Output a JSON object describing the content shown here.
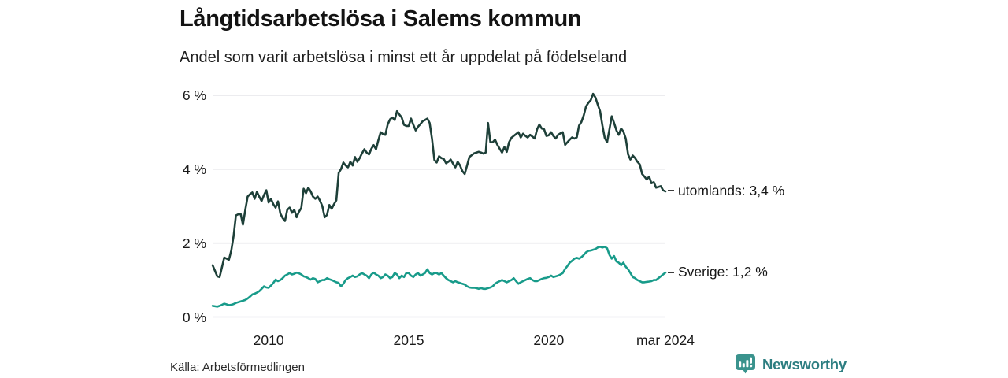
{
  "header": {
    "title": "Långtidsarbetslösa i Salems kommun",
    "subtitle": "Andel som varit arbetslösa i minst ett år uppdelat på födelseland"
  },
  "footer": {
    "source": "Källa: Arbetsförmedlingen",
    "brand": "Newsworthy",
    "brand_icon": "newsworthy-bubble-barchart-icon"
  },
  "colors": {
    "series_foreign": "#1e4039",
    "series_sweden": "#189b8a",
    "grid": "#e6e6ea",
    "text": "#1a1a1a",
    "leader_dash": "#3c3c3c",
    "brand_teal": "#2d7e81",
    "brand_icon_teal": "#3a938d"
  },
  "chart_data": {
    "type": "line",
    "title": "Långtidsarbetslösa i Salems kommun",
    "subtitle": "Andel som varit arbetslösa i minst ett år uppdelat på födelseland",
    "grid": true,
    "legend_position": "end-of-line labels, right of plot",
    "x": {
      "freq": "monthly",
      "start": "2008-01",
      "end": "2024-03",
      "ticks": [
        {
          "label": "2010",
          "month_index": 24
        },
        {
          "label": "2015",
          "month_index": 84
        },
        {
          "label": "2020",
          "month_index": 144
        },
        {
          "label": "mar 2024",
          "month_index": 194
        }
      ]
    },
    "y": {
      "unit": "%",
      "min": 0,
      "max": 6,
      "ticks": [
        {
          "label": "0 %",
          "value": 0
        },
        {
          "label": "2 %",
          "value": 2
        },
        {
          "label": "4 %",
          "value": 4
        },
        {
          "label": "6 %",
          "value": 6
        }
      ]
    },
    "series": [
      {
        "name": "utomlands",
        "end_label": "utomlands: 3,4 %",
        "last_value": "3,4 %",
        "color": "#1e4039",
        "values": [
          1.4,
          1.25,
          1.1,
          1.08,
          1.35,
          1.61,
          1.58,
          1.55,
          1.8,
          2.2,
          2.75,
          2.78,
          2.79,
          2.5,
          2.9,
          3.26,
          3.32,
          3.37,
          3.2,
          3.39,
          3.25,
          3.14,
          3.3,
          3.43,
          3.1,
          3.2,
          3.05,
          2.96,
          3.13,
          2.8,
          2.68,
          2.6,
          2.9,
          2.96,
          2.82,
          2.9,
          2.7,
          2.85,
          2.95,
          3.47,
          3.35,
          3.5,
          3.4,
          3.26,
          3.2,
          3.26,
          3.15,
          3.0,
          2.7,
          2.76,
          3.03,
          2.93,
          3.05,
          3.16,
          3.9,
          4.0,
          4.18,
          4.1,
          4.05,
          4.2,
          4.1,
          4.33,
          4.2,
          4.3,
          4.43,
          4.54,
          4.45,
          4.4,
          4.55,
          4.65,
          4.54,
          4.78,
          5.0,
          4.95,
          4.93,
          5.21,
          5.35,
          5.4,
          5.33,
          5.57,
          5.48,
          5.4,
          5.2,
          5.17,
          5.17,
          5.37,
          5.2,
          5.05,
          5.15,
          5.22,
          5.3,
          5.33,
          5.37,
          5.25,
          4.82,
          4.25,
          4.18,
          4.35,
          4.3,
          4.28,
          4.16,
          4.2,
          4.26,
          4.15,
          4.05,
          4.2,
          4.1,
          3.95,
          3.87,
          4.1,
          4.33,
          4.38,
          4.43,
          4.45,
          4.47,
          4.45,
          4.42,
          4.45,
          5.25,
          4.73,
          4.73,
          4.8,
          4.66,
          4.55,
          4.45,
          4.6,
          4.47,
          4.73,
          4.85,
          4.9,
          4.95,
          5.0,
          4.86,
          4.96,
          4.9,
          4.86,
          4.93,
          4.88,
          4.83,
          5.08,
          5.21,
          5.1,
          5.08,
          4.9,
          4.92,
          5.0,
          4.9,
          4.83,
          4.93,
          4.97,
          5.0,
          4.66,
          4.73,
          4.8,
          4.86,
          4.83,
          4.86,
          5.18,
          5.28,
          5.46,
          5.7,
          5.8,
          5.87,
          6.04,
          5.94,
          5.75,
          5.57,
          5.18,
          4.85,
          4.73,
          5.08,
          5.43,
          5.25,
          5.05,
          4.93,
          5.1,
          5.02,
          4.83,
          4.4,
          4.26,
          4.37,
          4.3,
          4.2,
          4.13,
          3.87,
          3.8,
          3.72,
          3.8,
          3.62,
          3.65,
          3.5,
          3.52,
          3.54,
          3.43,
          3.4
        ]
      },
      {
        "name": "Sverige",
        "end_label": "Sverige: 1,2 %",
        "last_value": "1,2 %",
        "color": "#189b8a",
        "values": [
          0.3,
          0.29,
          0.28,
          0.3,
          0.33,
          0.36,
          0.34,
          0.32,
          0.33,
          0.35,
          0.38,
          0.4,
          0.42,
          0.44,
          0.46,
          0.5,
          0.55,
          0.61,
          0.63,
          0.66,
          0.7,
          0.76,
          0.83,
          0.8,
          0.79,
          0.85,
          0.92,
          1.01,
          0.97,
          1.0,
          1.05,
          1.12,
          1.15,
          1.19,
          1.15,
          1.17,
          1.2,
          1.18,
          1.15,
          1.1,
          1.08,
          1.05,
          1.01,
          1.05,
          1.03,
          0.94,
          0.97,
          1.0,
          1.0,
          1.05,
          1.02,
          1.0,
          0.97,
          0.94,
          0.92,
          0.83,
          0.9,
          1.0,
          1.05,
          1.08,
          1.12,
          1.08,
          1.1,
          1.15,
          1.19,
          1.15,
          1.12,
          1.05,
          1.15,
          1.2,
          1.15,
          1.12,
          1.05,
          1.08,
          1.15,
          1.12,
          1.05,
          1.08,
          1.19,
          1.15,
          1.05,
          1.12,
          1.08,
          1.19,
          1.19,
          1.12,
          1.08,
          1.15,
          1.19,
          1.12,
          1.15,
          1.19,
          1.29,
          1.19,
          1.15,
          1.19,
          1.19,
          1.15,
          1.19,
          1.12,
          1.05,
          1.0,
          0.97,
          0.94,
          0.97,
          0.94,
          0.92,
          0.9,
          0.88,
          0.83,
          0.8,
          0.79,
          0.79,
          0.78,
          0.76,
          0.78,
          0.76,
          0.76,
          0.78,
          0.8,
          0.83,
          0.9,
          0.94,
          0.97,
          1.0,
          0.97,
          0.94,
          0.97,
          1.0,
          1.05,
          0.97,
          0.9,
          0.94,
          0.97,
          1.0,
          1.03,
          1.05,
          1.0,
          0.97,
          0.97,
          1.0,
          1.03,
          1.05,
          1.06,
          1.08,
          1.12,
          1.08,
          1.1,
          1.12,
          1.15,
          1.19,
          1.3,
          1.38,
          1.47,
          1.52,
          1.58,
          1.6,
          1.58,
          1.62,
          1.68,
          1.75,
          1.79,
          1.8,
          1.82,
          1.84,
          1.88,
          1.9,
          1.88,
          1.9,
          1.86,
          1.68,
          1.58,
          1.65,
          1.5,
          1.47,
          1.4,
          1.47,
          1.36,
          1.29,
          1.19,
          1.08,
          1.05,
          1.0,
          0.97,
          0.94,
          0.94,
          0.95,
          0.96,
          0.97,
          1.0,
          1.0,
          1.05,
          1.1,
          1.15,
          1.2
        ]
      }
    ]
  }
}
